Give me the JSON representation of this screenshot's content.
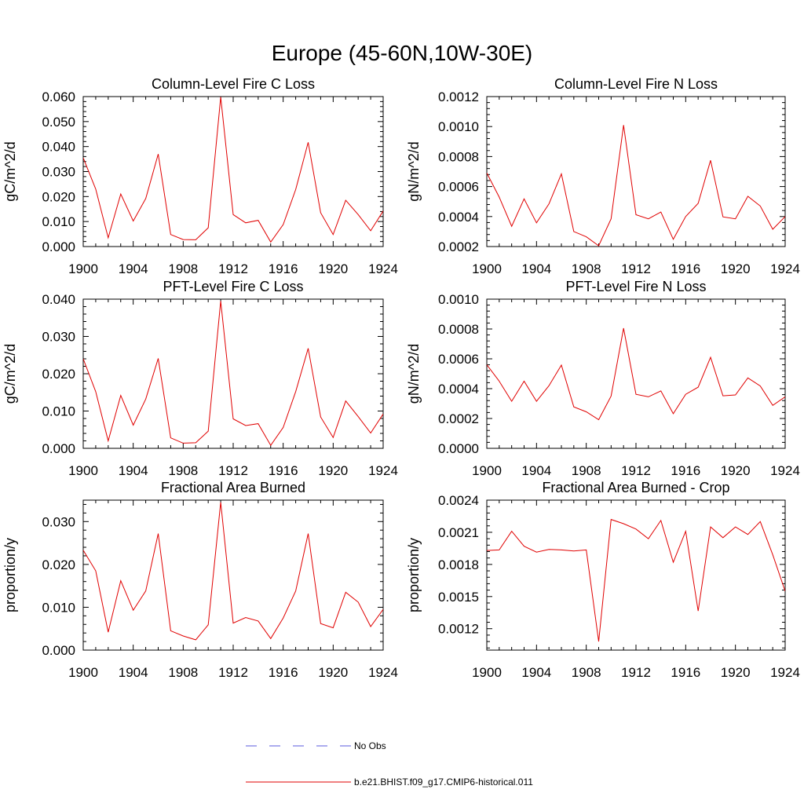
{
  "figure": {
    "title": "Europe (45-60N,10W-30E)"
  },
  "legend": {
    "items": [
      {
        "label": "No Obs",
        "color": "#5a5adc",
        "dash": "dashed"
      },
      {
        "label": "b.e21.BHIST.f09_g17.CMIP6-historical.011",
        "color": "#e00000",
        "dash": "solid"
      }
    ]
  },
  "chart_data": [
    {
      "type": "line",
      "title": "Column-Level Fire C Loss",
      "xlabel": "",
      "ylabel": "gC/m^2/d",
      "xlim": [
        1900,
        1924
      ],
      "ylim": [
        0,
        0.06
      ],
      "xticks": [
        "1900",
        "1904",
        "1908",
        "1912",
        "1916",
        "1920",
        "1924"
      ],
      "yticks": [
        "0.000",
        "0.010",
        "0.020",
        "0.030",
        "0.040",
        "0.050",
        "0.060"
      ],
      "grid": false,
      "series": [
        {
          "name": "b.e21.BHIST.f09_g17.CMIP6-historical.011",
          "color": "#e00000",
          "x": [
            1900,
            1901,
            1902,
            1903,
            1904,
            1905,
            1906,
            1907,
            1908,
            1909,
            1910,
            1911,
            1912,
            1913,
            1914,
            1915,
            1916,
            1917,
            1918,
            1919,
            1920,
            1921,
            1922,
            1923,
            1924
          ],
          "values": [
            0.0355,
            0.023,
            0.0035,
            0.021,
            0.0102,
            0.0192,
            0.037,
            0.0048,
            0.0028,
            0.0027,
            0.0075,
            0.0598,
            0.0128,
            0.0095,
            0.0105,
            0.0018,
            0.0088,
            0.0228,
            0.0417,
            0.0135,
            0.0048,
            0.0185,
            0.0128,
            0.0063,
            0.0142
          ]
        }
      ]
    },
    {
      "type": "line",
      "title": "Column-Level Fire N Loss",
      "xlabel": "",
      "ylabel": "gN/m^2/d",
      "xlim": [
        1900,
        1924
      ],
      "ylim": [
        0.0002,
        0.0012
      ],
      "xticks": [
        "1900",
        "1904",
        "1908",
        "1912",
        "1916",
        "1920",
        "1924"
      ],
      "yticks": [
        "0.0002",
        "0.0004",
        "0.0006",
        "0.0008",
        "0.0010",
        "0.0012"
      ],
      "grid": false,
      "series": [
        {
          "name": "b.e21.BHIST.f09_g17.CMIP6-historical.011",
          "color": "#e00000",
          "x": [
            1900,
            1901,
            1902,
            1903,
            1904,
            1905,
            1906,
            1907,
            1908,
            1909,
            1910,
            1911,
            1912,
            1913,
            1914,
            1915,
            1916,
            1917,
            1918,
            1919,
            1920,
            1921,
            1922,
            1923,
            1924
          ],
          "values": [
            0.00069,
            0.00053,
            0.000335,
            0.000518,
            0.000358,
            0.000485,
            0.000685,
            0.0003,
            0.000265,
            0.000205,
            0.000385,
            0.00101,
            0.000412,
            0.000385,
            0.00043,
            0.000248,
            0.0004,
            0.000488,
            0.000775,
            0.000398,
            0.000385,
            0.000535,
            0.00047,
            0.000315,
            0.0004
          ]
        }
      ]
    },
    {
      "type": "line",
      "title": "PFT-Level Fire C Loss",
      "xlabel": "",
      "ylabel": "gC/m^2/d",
      "xlim": [
        1900,
        1924
      ],
      "ylim": [
        0,
        0.04
      ],
      "xticks": [
        "1900",
        "1904",
        "1908",
        "1912",
        "1916",
        "1920",
        "1924"
      ],
      "yticks": [
        "0.000",
        "0.010",
        "0.020",
        "0.030",
        "0.040"
      ],
      "grid": false,
      "series": [
        {
          "name": "b.e21.BHIST.f09_g17.CMIP6-historical.011",
          "color": "#e00000",
          "x": [
            1900,
            1901,
            1902,
            1903,
            1904,
            1905,
            1906,
            1907,
            1908,
            1909,
            1910,
            1911,
            1912,
            1913,
            1914,
            1915,
            1916,
            1917,
            1918,
            1919,
            1920,
            1921,
            1922,
            1923,
            1924
          ],
          "values": [
            0.024,
            0.0152,
            0.002,
            0.0142,
            0.0062,
            0.0132,
            0.0241,
            0.0028,
            0.0014,
            0.0015,
            0.0046,
            0.0395,
            0.0079,
            0.0061,
            0.0066,
            0.0008,
            0.0056,
            0.0152,
            0.0268,
            0.0084,
            0.0029,
            0.0127,
            0.0085,
            0.0041,
            0.0092
          ]
        }
      ]
    },
    {
      "type": "line",
      "title": "PFT-Level Fire N Loss",
      "xlabel": "",
      "ylabel": "gN/m^2/d",
      "xlim": [
        1900,
        1924
      ],
      "ylim": [
        0,
        0.001
      ],
      "xticks": [
        "1900",
        "1904",
        "1908",
        "1912",
        "1916",
        "1920",
        "1924"
      ],
      "yticks": [
        "0.0000",
        "0.0002",
        "0.0004",
        "0.0006",
        "0.0008",
        "0.0010"
      ],
      "grid": false,
      "series": [
        {
          "name": "b.e21.BHIST.f09_g17.CMIP6-historical.011",
          "color": "#e00000",
          "x": [
            1900,
            1901,
            1902,
            1903,
            1904,
            1905,
            1906,
            1907,
            1908,
            1909,
            1910,
            1911,
            1912,
            1913,
            1914,
            1915,
            1916,
            1917,
            1918,
            1919,
            1920,
            1921,
            1922,
            1923,
            1924
          ],
          "values": [
            0.00056,
            0.00045,
            0.000315,
            0.00045,
            0.000315,
            0.00042,
            0.000558,
            0.000278,
            0.000245,
            0.000192,
            0.00035,
            0.000805,
            0.000362,
            0.000345,
            0.000385,
            0.000232,
            0.000362,
            0.00041,
            0.00061,
            0.000352,
            0.000358,
            0.000472,
            0.000418,
            0.000288,
            0.000345
          ]
        }
      ]
    },
    {
      "type": "line",
      "title": "Fractional Area Burned",
      "xlabel": "",
      "ylabel": "proportion/y",
      "xlim": [
        1900,
        1924
      ],
      "ylim": [
        0,
        0.035
      ],
      "xticks": [
        "1900",
        "1904",
        "1908",
        "1912",
        "1916",
        "1920",
        "1924"
      ],
      "yticks": [
        "0.000",
        "0.010",
        "0.020",
        "0.030"
      ],
      "grid": false,
      "series": [
        {
          "name": "b.e21.BHIST.f09_g17.CMIP6-historical.011",
          "color": "#e00000",
          "x": [
            1900,
            1901,
            1902,
            1903,
            1904,
            1905,
            1906,
            1907,
            1908,
            1909,
            1910,
            1911,
            1912,
            1913,
            1914,
            1915,
            1916,
            1917,
            1918,
            1919,
            1920,
            1921,
            1922,
            1923,
            1924
          ],
          "values": [
            0.0233,
            0.0185,
            0.0042,
            0.0162,
            0.0093,
            0.0138,
            0.0272,
            0.0045,
            0.0033,
            0.0024,
            0.0059,
            0.0345,
            0.0063,
            0.0076,
            0.0068,
            0.0027,
            0.0075,
            0.0138,
            0.0272,
            0.0062,
            0.0052,
            0.0135,
            0.0112,
            0.0055,
            0.0095
          ]
        }
      ]
    },
    {
      "type": "line",
      "title": "Fractional Area Burned - Crop",
      "xlabel": "",
      "ylabel": "proportion/y",
      "xlim": [
        1900,
        1924
      ],
      "ylim": [
        0.001,
        0.0024
      ],
      "xticks": [
        "1900",
        "1904",
        "1908",
        "1912",
        "1916",
        "1920",
        "1924"
      ],
      "yticks": [
        "0.0012",
        "0.0015",
        "0.0018",
        "0.0021",
        "0.0024"
      ],
      "grid": false,
      "series": [
        {
          "name": "b.e21.BHIST.f09_g17.CMIP6-historical.011",
          "color": "#e00000",
          "x": [
            1900,
            1901,
            1902,
            1903,
            1904,
            1905,
            1906,
            1907,
            1908,
            1909,
            1910,
            1911,
            1912,
            1913,
            1914,
            1915,
            1916,
            1917,
            1918,
            1919,
            1920,
            1921,
            1922,
            1923,
            1924
          ],
          "values": [
            0.00193,
            0.001935,
            0.00211,
            0.00197,
            0.001915,
            0.00194,
            0.001935,
            0.001925,
            0.001935,
            0.00108,
            0.00222,
            0.00218,
            0.00213,
            0.00204,
            0.00221,
            0.00182,
            0.00211,
            0.001365,
            0.00215,
            0.00205,
            0.00215,
            0.00208,
            0.0022,
            0.00189,
            0.00155
          ]
        }
      ]
    }
  ]
}
